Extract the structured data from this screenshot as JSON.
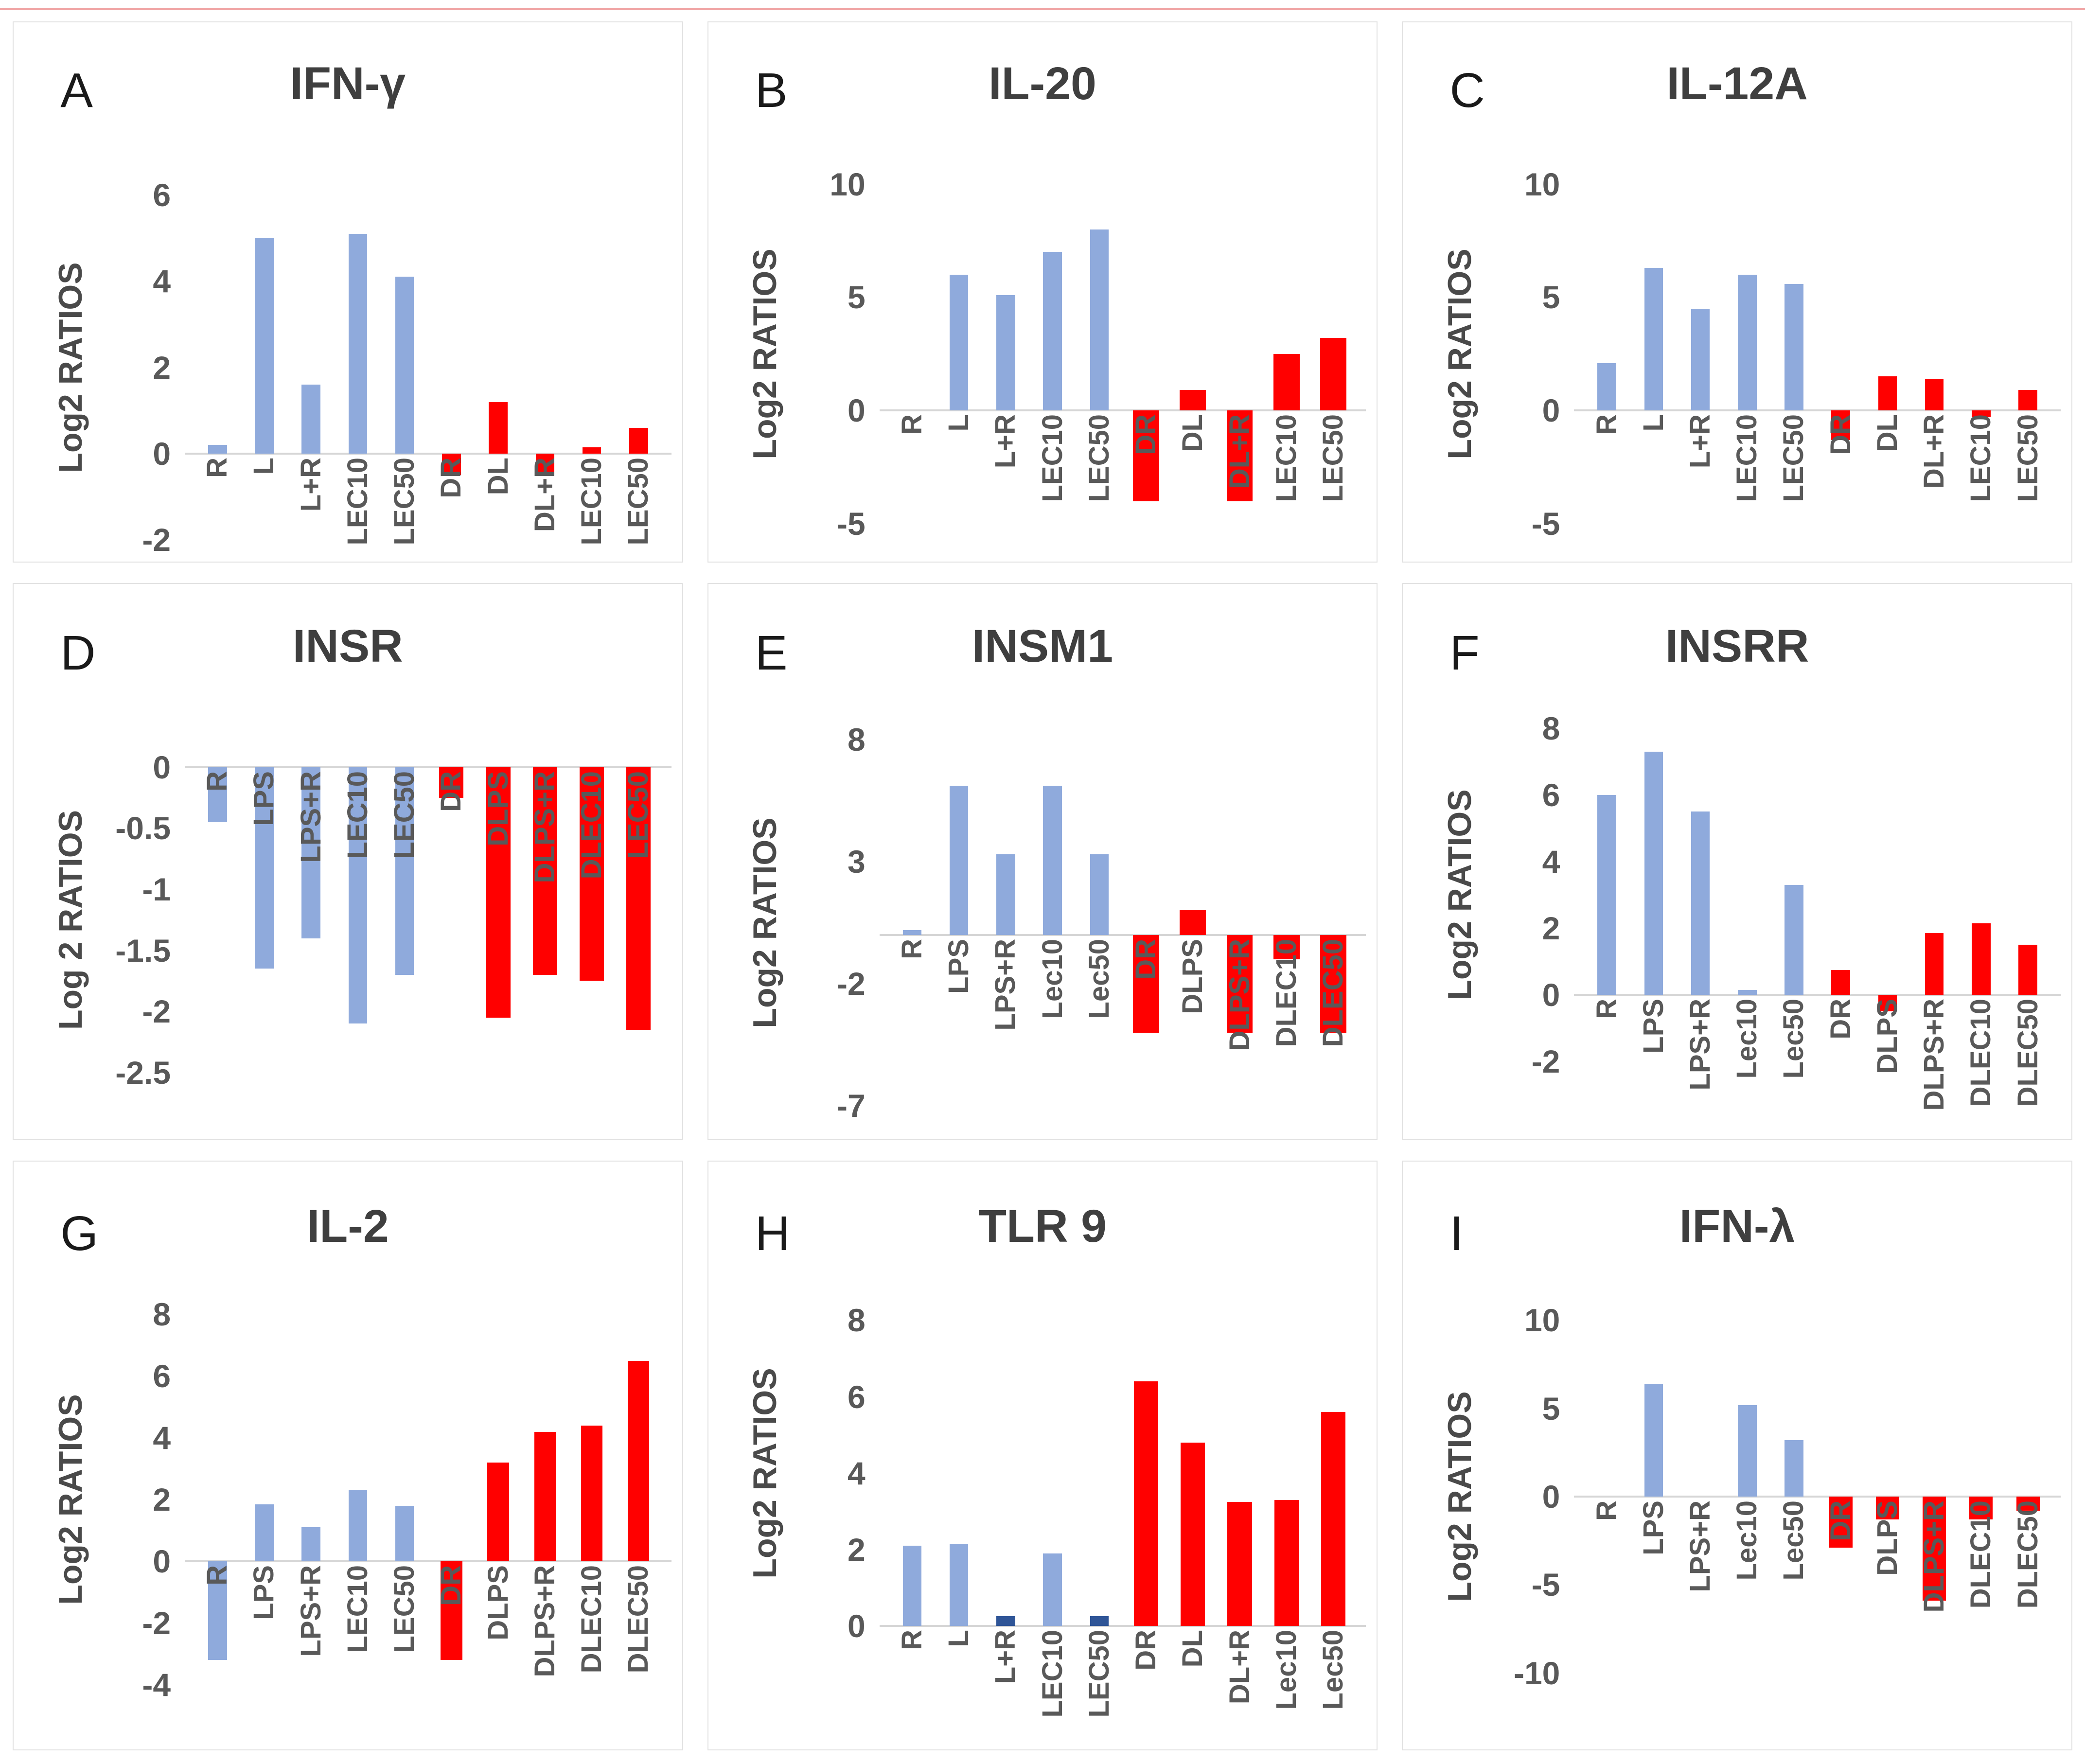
{
  "figure": {
    "top_line_color": "#f0a3a3",
    "background_color": "#ffffff",
    "panel_border_color": "#e2e2e2",
    "axis_line_color": "#d6d6d6",
    "text_color": "#595959",
    "title_color": "#3f3f3f"
  },
  "palette": {
    "blue": "#8FAADC",
    "darkblue": "#2F5597",
    "red": "#FF0000"
  },
  "chart_data": [
    {
      "type": "bar",
      "letter": "A",
      "title": "IFN-γ",
      "ylabel": "Log2 RATIOS",
      "ylim": [
        -2,
        6
      ],
      "ticks": [
        6,
        4,
        2,
        0,
        -2
      ],
      "grid": false,
      "legend": "none",
      "categories": [
        "R",
        "L",
        "L+R",
        "LEC10",
        "LEC50",
        "DR",
        "DL",
        "DL+R",
        "LEC10",
        "LEC50"
      ],
      "values": [
        0.2,
        5.0,
        1.6,
        5.1,
        4.1,
        -0.5,
        1.2,
        -0.5,
        0.15,
        0.6
      ],
      "bar_colors": [
        "blue",
        "blue",
        "blue",
        "blue",
        "blue",
        "red",
        "red",
        "red",
        "red",
        "red"
      ],
      "layout": {
        "plot_top": 0.32,
        "plot_h": 0.64,
        "red_width": 1.0
      }
    },
    {
      "type": "bar",
      "letter": "B",
      "title": "IL-20",
      "ylabel": "Log2 RATIOS",
      "ylim": [
        -5,
        10
      ],
      "ticks": [
        10,
        5,
        0,
        -5
      ],
      "grid": false,
      "legend": "none",
      "categories": [
        "R",
        "L",
        "L+R",
        "LEC10",
        "LEC50",
        "DR",
        "DL",
        "DL+R",
        "LEC10",
        "LEC50"
      ],
      "values": [
        0,
        6.0,
        5.1,
        7.0,
        8.0,
        -4.0,
        0.9,
        -4.0,
        2.5,
        3.2
      ],
      "bar_colors": [
        "blue",
        "blue",
        "blue",
        "blue",
        "blue",
        "red",
        "red",
        "red",
        "red",
        "red"
      ],
      "layout": {
        "plot_top": 0.3,
        "plot_h": 0.63,
        "red_width": 1.4
      }
    },
    {
      "type": "bar",
      "letter": "C",
      "title": "IL-12A",
      "ylabel": "Log2 RATIOS",
      "ylim": [
        -5,
        10
      ],
      "ticks": [
        10,
        5,
        0,
        -5
      ],
      "grid": false,
      "legend": "none",
      "categories": [
        "R",
        "L",
        "L+R",
        "LEC10",
        "LEC50",
        "DR",
        "DL",
        "DL+R",
        "LEC10",
        "LEC50"
      ],
      "values": [
        2.1,
        6.3,
        4.5,
        6.0,
        5.6,
        -1.3,
        1.5,
        1.4,
        -0.3,
        0.9
      ],
      "bar_colors": [
        "blue",
        "blue",
        "blue",
        "blue",
        "blue",
        "red",
        "red",
        "red",
        "red",
        "red"
      ],
      "layout": {
        "plot_top": 0.3,
        "plot_h": 0.63,
        "red_width": 1.0
      }
    },
    {
      "type": "bar",
      "letter": "D",
      "title": "INSR",
      "ylabel": "Log 2 RATIOS",
      "ylim": [
        -2.5,
        0
      ],
      "ticks": [
        0,
        -0.5,
        -1,
        -1.5,
        -2,
        -2.5
      ],
      "grid": false,
      "legend": "none",
      "categories": [
        "R",
        "LPS",
        "LPS+R",
        "LEC10",
        "LEC50",
        "DR",
        "DLPS",
        "DLPS+R",
        "DLEC10",
        "LEC50"
      ],
      "values": [
        -0.45,
        -1.65,
        -1.4,
        -2.1,
        -1.7,
        -0.25,
        -2.05,
        -1.7,
        -1.75,
        -2.15
      ],
      "bar_colors": [
        "blue",
        "blue",
        "blue",
        "blue",
        "blue",
        "red",
        "red",
        "red",
        "red",
        "red"
      ],
      "layout": {
        "plot_top": 0.33,
        "plot_h": 0.55,
        "red_width": 1.3
      }
    },
    {
      "type": "bar",
      "letter": "E",
      "title": "INSM1",
      "ylabel": "Log2 RATIOS",
      "ylim": [
        -7,
        8
      ],
      "ticks": [
        8,
        3,
        -2,
        -7
      ],
      "grid": false,
      "legend": "none",
      "categories": [
        "R",
        "LPS",
        "LPS+R",
        "Lec10",
        "Lec50",
        "DR",
        "DLPS",
        "DLPS+R",
        "DLEC10",
        "DLEC50"
      ],
      "values": [
        0.2,
        6.1,
        3.3,
        6.1,
        3.3,
        -4.0,
        1.0,
        -4.0,
        -1.0,
        -4.0
      ],
      "bar_colors": [
        "blue",
        "blue",
        "blue",
        "blue",
        "blue",
        "red",
        "red",
        "red",
        "red",
        "red"
      ],
      "layout": {
        "plot_top": 0.28,
        "plot_h": 0.66,
        "red_width": 1.4
      }
    },
    {
      "type": "bar",
      "letter": "F",
      "title": "INSRR",
      "ylabel": "Log2 RATIOS",
      "ylim": [
        -2,
        8
      ],
      "ticks": [
        8,
        6,
        4,
        2,
        0,
        -2
      ],
      "grid": false,
      "legend": "none",
      "categories": [
        "R",
        "LPS",
        "LPS+R",
        "Lec10",
        "Lec50",
        "DR",
        "DLPS",
        "DLPS+R",
        "DLEC10",
        "DLEC50"
      ],
      "values": [
        6.0,
        7.3,
        5.5,
        0.15,
        3.3,
        0.75,
        -0.5,
        1.85,
        2.15,
        1.5
      ],
      "bar_colors": [
        "blue",
        "blue",
        "blue",
        "blue",
        "blue",
        "red",
        "red",
        "red",
        "red",
        "red"
      ],
      "layout": {
        "plot_top": 0.26,
        "plot_h": 0.6,
        "red_width": 1.0
      }
    },
    {
      "type": "bar",
      "letter": "G",
      "title": "IL-2",
      "ylabel": "Log2 RATIOS",
      "ylim": [
        -4,
        8
      ],
      "ticks": [
        8,
        6,
        4,
        2,
        0,
        -2,
        -4
      ],
      "grid": false,
      "legend": "none",
      "categories": [
        "R",
        "LPS",
        "LPS+R",
        "LEC10",
        "LEC50",
        "DR",
        "DLPS",
        "DLPS+R",
        "DLEC10",
        "DLEC50"
      ],
      "values": [
        -3.2,
        1.85,
        1.1,
        2.3,
        1.8,
        -3.2,
        3.2,
        4.2,
        4.4,
        6.5
      ],
      "bar_colors": [
        "blue",
        "blue",
        "blue",
        "blue",
        "blue",
        "red",
        "red",
        "red",
        "red",
        "red"
      ],
      "layout": {
        "plot_top": 0.26,
        "plot_h": 0.63,
        "red_width": 1.15
      }
    },
    {
      "type": "bar",
      "letter": "H",
      "title": "TLR 9",
      "ylabel": "Log2 RATIOS",
      "ylim": [
        0,
        8
      ],
      "ticks": [
        8,
        6,
        4,
        2,
        0
      ],
      "grid": false,
      "legend": "none",
      "categories": [
        "R",
        "L",
        "L+R",
        "LEC10",
        "LEC50",
        "DR",
        "DL",
        "DL+R",
        "Lec10",
        "Lec50"
      ],
      "values": [
        2.1,
        2.15,
        0.25,
        1.9,
        0.25,
        6.4,
        4.8,
        3.25,
        3.3,
        5.6
      ],
      "bar_colors": [
        "blue",
        "blue",
        "darkblue",
        "blue",
        "darkblue",
        "red",
        "red",
        "red",
        "red",
        "red"
      ],
      "layout": {
        "plot_top": 0.27,
        "plot_h": 0.52,
        "red_width": 1.3
      }
    },
    {
      "type": "bar",
      "letter": "I",
      "title": "IFN-λ",
      "ylabel": "Log2 RATIOS",
      "ylim": [
        -10,
        10
      ],
      "ticks": [
        10,
        5,
        0,
        -5,
        -10
      ],
      "grid": false,
      "legend": "none",
      "categories": [
        "R",
        "LPS",
        "LPS+R",
        "Lec10",
        "Lec50",
        "DR",
        "DLPS",
        "DLPS+R",
        "DLEC10",
        "DLEC50"
      ],
      "values": [
        0,
        6.4,
        0,
        5.2,
        3.2,
        -2.9,
        -1.3,
        -5.9,
        -1.3,
        -0.8
      ],
      "bar_colors": [
        "blue",
        "blue",
        "blue",
        "blue",
        "blue",
        "red",
        "red",
        "red",
        "red",
        "red"
      ],
      "layout": {
        "plot_top": 0.27,
        "plot_h": 0.6,
        "red_width": 1.25
      }
    }
  ]
}
